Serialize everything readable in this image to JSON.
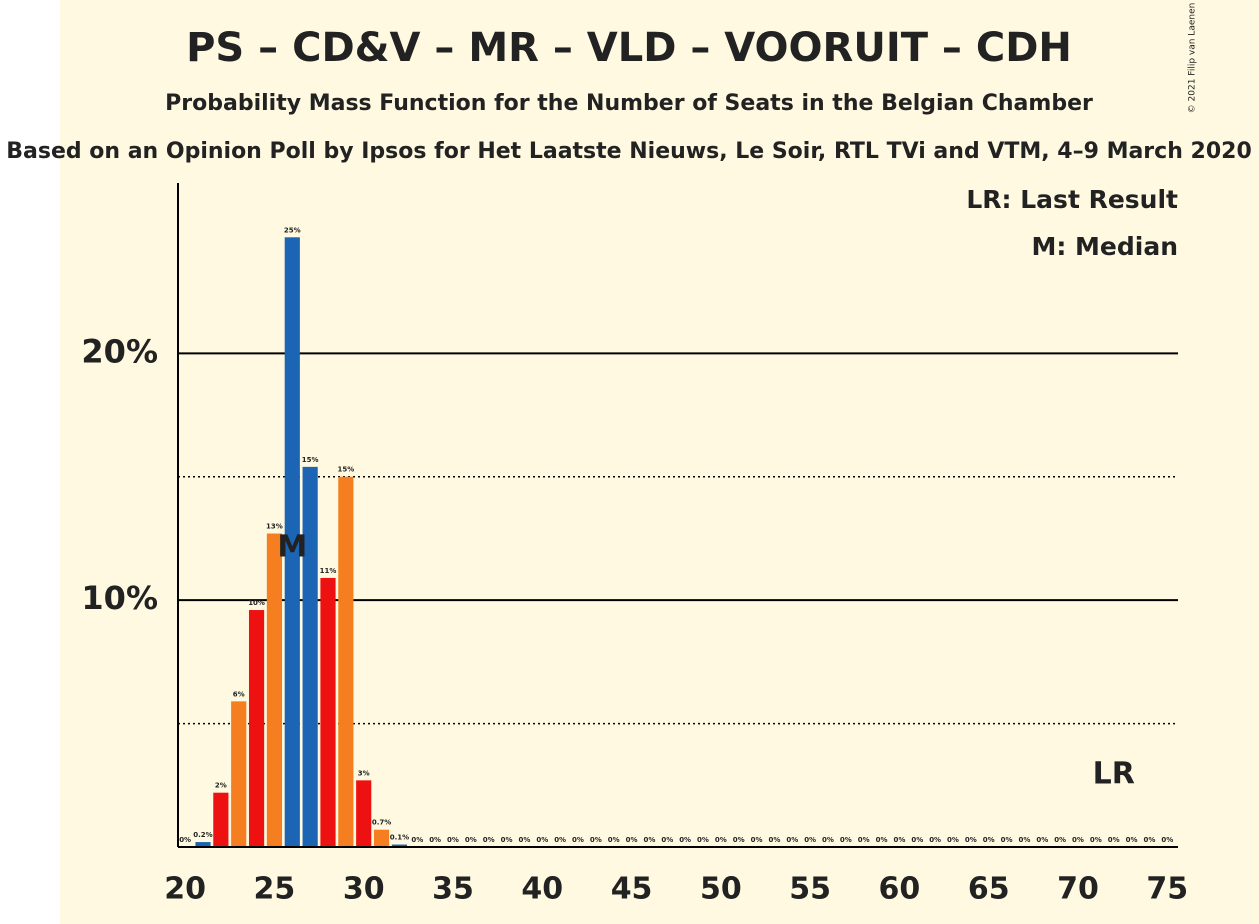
{
  "chart_data": {
    "type": "bar",
    "title": "PS – CD&V – MR – VLD – VOORUIT – CDH",
    "subtitle": "Probability Mass Function for the Number of Seats in the Belgian Chamber",
    "source": "Based on an Opinion Poll by Ipsos for Het Laatste Nieuws, Le Soir, RTL TVi and VTM, 4–9 March 2020",
    "copyright": "© 2021 Filip van Laenen",
    "legend": [
      "LR: Last Result",
      "M: Median"
    ],
    "x": [
      20,
      21,
      22,
      23,
      24,
      25,
      26,
      27,
      28,
      29,
      30,
      31,
      32,
      33,
      34,
      35,
      36,
      37,
      38,
      39,
      40,
      41,
      42,
      43,
      44,
      45,
      46,
      47,
      48,
      49,
      50,
      51,
      52,
      53,
      54,
      55,
      56,
      57,
      58,
      59,
      60,
      61,
      62,
      63,
      64,
      65,
      66,
      67,
      68,
      69,
      70,
      71,
      72,
      73,
      74,
      75
    ],
    "values": [
      0,
      0.2,
      2.2,
      5.9,
      9.6,
      12.7,
      24.7,
      15.4,
      10.9,
      15.0,
      2.7,
      0.7,
      0.1,
      0,
      0,
      0,
      0,
      0,
      0,
      0,
      0,
      0,
      0,
      0,
      0,
      0,
      0,
      0,
      0,
      0,
      0,
      0,
      0,
      0,
      0,
      0,
      0,
      0,
      0,
      0,
      0,
      0,
      0,
      0,
      0,
      0,
      0,
      0,
      0,
      0,
      0,
      0,
      0,
      0,
      0,
      0
    ],
    "value_labels": [
      "0%",
      "0.2%",
      "2%",
      "6%",
      "10%",
      "13%",
      "25%",
      "15%",
      "11%",
      "15%",
      "3%",
      "0.7%",
      "0.1%",
      "0%",
      "0%",
      "0%",
      "0%",
      "0%",
      "0%",
      "0%",
      "0%",
      "0%",
      "0%",
      "0%",
      "0%",
      "0%",
      "0%",
      "0%",
      "0%",
      "0%",
      "0%",
      "0%",
      "0%",
      "0%",
      "0%",
      "0%",
      "0%",
      "0%",
      "0%",
      "0%",
      "0%",
      "0%",
      "0%",
      "0%",
      "0%",
      "0%",
      "0%",
      "0%",
      "0%",
      "0%",
      "0%",
      "0%",
      "0%",
      "0%",
      "0%",
      "0%"
    ],
    "colors": [
      "#1c64b4",
      "#1c64b4",
      "#ee1111",
      "#f57f20",
      "#ee1111",
      "#f57f20",
      "#1c64b4",
      "#1c64b4",
      "#ee1111",
      "#f57f20",
      "#ee1111",
      "#f57f20",
      "#1c64b4",
      "#1c64b4",
      "#1c64b4",
      "#1c64b4",
      "#1c64b4",
      "#1c64b4",
      "#1c64b4",
      "#1c64b4",
      "#1c64b4",
      "#1c64b4",
      "#1c64b4",
      "#1c64b4",
      "#1c64b4",
      "#1c64b4",
      "#1c64b4",
      "#1c64b4",
      "#1c64b4",
      "#1c64b4",
      "#1c64b4",
      "#1c64b4",
      "#1c64b4",
      "#1c64b4",
      "#1c64b4",
      "#1c64b4",
      "#1c64b4",
      "#1c64b4",
      "#1c64b4",
      "#1c64b4",
      "#1c64b4",
      "#1c64b4",
      "#1c64b4",
      "#1c64b4",
      "#1c64b4",
      "#1c64b4",
      "#1c64b4",
      "#1c64b4",
      "#1c64b4",
      "#1c64b4",
      "#1c64b4",
      "#1c64b4",
      "#1c64b4",
      "#1c64b4",
      "#1c64b4",
      "#1c64b4"
    ],
    "xlim": [
      19.6,
      75.6
    ],
    "xticks": [
      20,
      25,
      30,
      35,
      40,
      45,
      50,
      55,
      60,
      65,
      70,
      75
    ],
    "ylim": [
      0,
      26.9
    ],
    "yticks": [
      {
        "value": 10,
        "label": "10%"
      },
      {
        "value": 20,
        "label": "20%"
      }
    ],
    "minor_yticks": [
      5,
      15
    ],
    "grid": true,
    "median": 26,
    "median_label": "M",
    "last_result": 72,
    "last_result_label": "LR"
  }
}
